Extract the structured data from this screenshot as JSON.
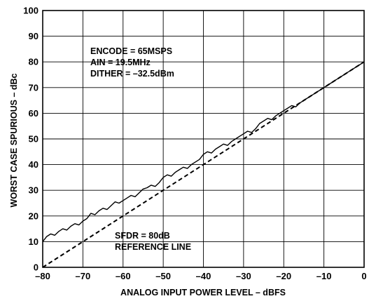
{
  "chart_data": {
    "type": "line",
    "xlabel": "ANALOG INPUT POWER LEVEL – dBFS",
    "ylabel": "WORST CASE SPURIOUS – dBc",
    "xlim": [
      -80,
      0
    ],
    "ylim": [
      0,
      100
    ],
    "grid": true,
    "x_ticks": [
      -80,
      -70,
      -60,
      -50,
      -40,
      -30,
      -20,
      -10,
      0
    ],
    "y_ticks": [
      0,
      10,
      20,
      30,
      40,
      50,
      60,
      70,
      80,
      90,
      100
    ],
    "x_tick_labels": [
      "–80",
      "–70",
      "–60",
      "–50",
      "–40",
      "–30",
      "–20",
      "–10",
      "0"
    ],
    "y_tick_labels": [
      "0",
      "10",
      "20",
      "30",
      "40",
      "50",
      "60",
      "70",
      "80",
      "90",
      "100"
    ],
    "annotations": {
      "conditions": [
        "ENCODE = 65MSPS",
        "AIN = 19.5MHz",
        "DITHER = –32.5dBm"
      ],
      "reference": [
        "SFDR = 80dB",
        "REFERENCE LINE"
      ]
    },
    "series": [
      {
        "style": "solid",
        "x": [
          -80,
          -79,
          -78,
          -77,
          -76,
          -75,
          -74,
          -73,
          -72,
          -71,
          -70,
          -69,
          -68,
          -67,
          -66,
          -65,
          -64,
          -63,
          -62,
          -61,
          -60,
          -59,
          -58,
          -57,
          -56,
          -55,
          -54,
          -53,
          -52,
          -51,
          -50,
          -49,
          -48,
          -47,
          -46,
          -45,
          -44,
          -43,
          -42,
          -41,
          -40,
          -39,
          -38,
          -37,
          -36,
          -35,
          -34,
          -33,
          -32,
          -31,
          -30,
          -29,
          -28,
          -27,
          -26,
          -25,
          -24,
          -23,
          -22,
          -21,
          -20,
          -19,
          -18,
          -17,
          -16,
          -15,
          -14,
          -13,
          -12,
          -11,
          -10,
          -9,
          -8,
          -7,
          -6,
          -5,
          -4,
          -3,
          -2,
          -1,
          0
        ],
        "y": [
          10,
          12,
          13,
          12.5,
          14,
          15,
          14.5,
          16,
          17,
          16.5,
          18,
          19,
          21,
          20.5,
          22,
          23,
          22.5,
          24,
          25.5,
          25,
          26,
          27,
          28,
          27.5,
          29,
          30.5,
          31,
          32,
          31.5,
          33,
          35,
          36,
          35.5,
          37,
          38,
          39,
          38.5,
          40,
          41,
          42,
          44,
          45,
          44.5,
          46,
          47,
          48,
          47.5,
          49,
          50,
          51,
          52,
          53,
          52.5,
          54,
          56,
          57,
          58,
          57.5,
          59,
          60,
          61,
          62,
          63,
          62.5,
          64,
          65,
          66,
          67,
          68,
          69,
          70,
          71,
          72,
          73,
          74,
          75,
          76,
          77,
          78,
          79,
          80
        ]
      },
      {
        "style": "dashed",
        "x": [
          -80,
          0
        ],
        "y": [
          0,
          80
        ]
      }
    ]
  }
}
